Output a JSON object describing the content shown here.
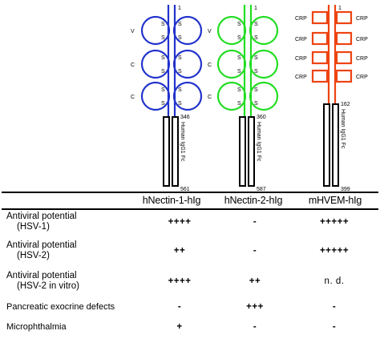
{
  "constructs": [
    {
      "name": "hNectin-1-hIg",
      "domain_labels": [
        "V",
        "C",
        "C"
      ],
      "start_residue": "1",
      "boundary_residue": "346",
      "end_residue": "561",
      "fc_label": "Human IgG1 Fc",
      "color": "#2233cc"
    },
    {
      "name": "hNectin-2-hIg",
      "domain_labels": [
        "V",
        "C",
        "C"
      ],
      "start_residue": "1",
      "boundary_residue": "360",
      "end_residue": "587",
      "fc_label": "Human IgG1 Fc",
      "color": "#22dd22"
    },
    {
      "name": "mHVEM-hIg",
      "domain_labels": [
        "CRP",
        "CRP",
        "CRP",
        "CRP"
      ],
      "start_residue": "1",
      "boundary_residue": "162",
      "end_residue": "399",
      "fc_label": "Human IgG1 Fc",
      "color": "#ee4411"
    }
  ],
  "disulfide_label": "S",
  "table": {
    "rows": [
      {
        "label_line1": "Antiviral potential",
        "label_line2": "(HSV-1)",
        "values": [
          "++++",
          "-",
          "+++++"
        ]
      },
      {
        "label_line1": "Antiviral potential",
        "label_line2": "(HSV-2)",
        "values": [
          "++",
          "-",
          "+++++"
        ]
      },
      {
        "label_line1": "Antiviral potential",
        "label_line2": "(HSV-2 in vitro)",
        "values": [
          "++++",
          "++",
          "n. d."
        ]
      },
      {
        "label_line1": "Pancreatic exocrine defects",
        "label_line2": "",
        "values": [
          "-",
          "+++",
          "-"
        ]
      },
      {
        "label_line1": "Microphthalmia",
        "label_line2": "",
        "values": [
          "+",
          "-",
          "-"
        ]
      }
    ]
  }
}
